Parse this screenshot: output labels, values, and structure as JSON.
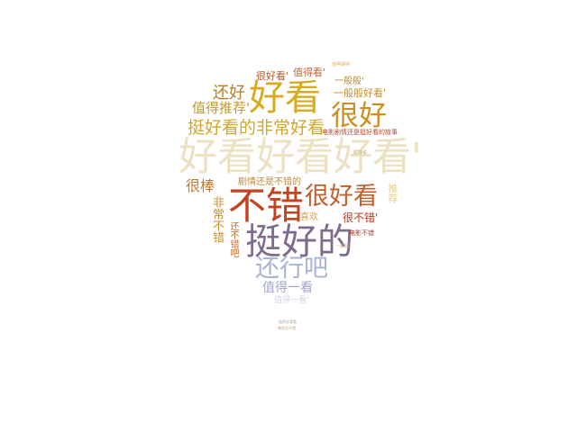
{
  "words": [
    {
      "text": "好看好看好看'",
      "color": "#ede1c3"
    },
    {
      "text": "不错",
      "color": "#c1431f"
    },
    {
      "text": "挺好的",
      "color": "#7f6b8a"
    },
    {
      "text": "好看",
      "color": "#d8aa1c"
    },
    {
      "text": "很好看",
      "color": "#c45e2a"
    },
    {
      "text": "很好",
      "color": "#cf8d1f"
    },
    {
      "text": "还行吧",
      "color": "#a9b3d3"
    },
    {
      "text": "挺好看的非常好看",
      "color": "#d3a72c"
    },
    {
      "text": "还好",
      "color": "#b37f2a"
    },
    {
      "text": "值得推荐'",
      "color": "#c79a2b"
    },
    {
      "text": "很棒",
      "color": "#c07a33"
    },
    {
      "text": "值得一看",
      "color": "#a2a6c8"
    },
    {
      "text": "很不错'",
      "color": "#b5391f"
    },
    {
      "text": "剧情还是不错的",
      "color": "#bd8a3d"
    },
    {
      "text": "非常不错",
      "color": "#cc8f2c"
    },
    {
      "text": "还不错吧",
      "color": "#c56c2a"
    },
    {
      "text": "一般般好看'",
      "color": "#c78e2d"
    },
    {
      "text": "一般般'",
      "color": "#b78a3a"
    },
    {
      "text": "值得看'",
      "color": "#c4673c"
    },
    {
      "text": "很好看'",
      "color": "#b3562b"
    },
    {
      "text": "喜欢",
      "color": "#d4a04a"
    },
    {
      "text": "推荐",
      "color": "#e3cf8a"
    },
    {
      "text": "电影不错",
      "color": "#a63c2a"
    },
    {
      "text": "电影剧情还是挺好看的故事",
      "color": "#b4462d"
    },
    {
      "text": "值得期待",
      "color": "#d8b070"
    },
    {
      "text": "值得一看'",
      "color": "#d9d2e6"
    },
    {
      "text": "值得去看看",
      "color": "#b9a4b0"
    },
    {
      "text": "感觉还不错",
      "color": "#c3a27a"
    },
    {
      "text": "一般般",
      "color": "#d6b98c"
    },
    {
      "text": "超好看",
      "color": "#c9a062"
    }
  ]
}
